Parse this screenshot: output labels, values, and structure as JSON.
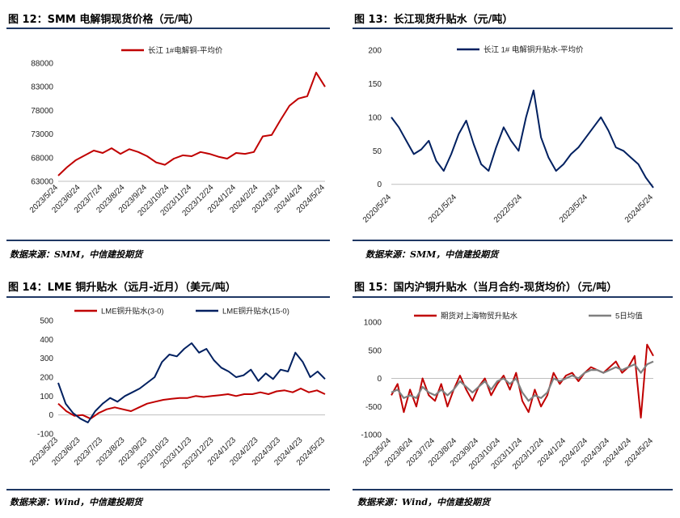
{
  "panels": [
    {
      "title": "图 12：SMM 电解铜现货价格（元/吨）",
      "source": "数据来源：SMM，中信建投期货"
    },
    {
      "title": "图 13：长江现货升贴水（元/吨）",
      "source": "数据来源：SMM，中信建投期货"
    },
    {
      "title": "图 14：LME 铜升贴水（远月-近月）（美元/吨）",
      "source": "数据来源：Wind，中信建投期货"
    },
    {
      "title": "图 15：国内沪铜升贴水（当月合约-现货均价）（元/吨）",
      "source": "数据来源：Wind，中信建投期货"
    }
  ],
  "colors": {
    "red": "#c00000",
    "navy": "#002060",
    "gray": "#7f7f7f",
    "rule": "#1f3864"
  },
  "chart_data": [
    {
      "type": "line",
      "title": "",
      "ylim": [
        63000,
        88000
      ],
      "yticks": [
        63000,
        68000,
        73000,
        78000,
        83000,
        88000
      ],
      "xticks": [
        "2023/5/24",
        "2023/6/24",
        "2023/7/24",
        "2023/8/24",
        "2023/9/24",
        "2023/10/24",
        "2023/11/24",
        "2023/12/24",
        "2024/1/24",
        "2024/2/24",
        "2024/3/24",
        "2024/4/24",
        "2024/5/24"
      ],
      "series": [
        {
          "name": "长江 1#电解铜-平均价",
          "color": "#c00000",
          "values": [
            64200,
            66000,
            67500,
            68500,
            69500,
            69000,
            70000,
            68800,
            69800,
            69200,
            68300,
            67000,
            66500,
            67800,
            68500,
            68300,
            69200,
            68800,
            68200,
            67800,
            69000,
            68800,
            69200,
            72500,
            72800,
            76000,
            79000,
            80500,
            81000,
            86000,
            83000
          ]
        }
      ]
    },
    {
      "type": "line",
      "title": "",
      "ylim": [
        -10,
        200
      ],
      "yticks": [
        0,
        50,
        100,
        150,
        200
      ],
      "xticks": [
        "2020/5/24",
        "2021/5/24",
        "2022/5/24",
        "2023/5/24",
        "2024/5/24"
      ],
      "series": [
        {
          "name": "长江 1# 电解铜升贴水-平均价",
          "color": "#002060",
          "values": [
            100,
            85,
            65,
            45,
            52,
            65,
            35,
            20,
            45,
            75,
            95,
            60,
            30,
            20,
            55,
            85,
            65,
            50,
            100,
            140,
            70,
            40,
            20,
            30,
            45,
            55,
            70,
            85,
            100,
            80,
            55,
            50,
            40,
            30,
            10,
            -5
          ]
        }
      ]
    },
    {
      "type": "line",
      "title": "",
      "ylim": [
        -100,
        500
      ],
      "yticks": [
        -100,
        0,
        100,
        200,
        300,
        400,
        500
      ],
      "xticks": [
        "2023/5/23",
        "2023/6/23",
        "2023/7/23",
        "2023/8/23",
        "2023/9/23",
        "2023/10/23",
        "2023/11/23",
        "2023/12/23",
        "2024/1/23",
        "2024/2/23",
        "2024/3/23",
        "2024/4/23",
        "2024/5/23"
      ],
      "series": [
        {
          "name": "LME铜升贴水(3-0)",
          "color": "#c00000",
          "values": [
            60,
            20,
            -5,
            0,
            -20,
            10,
            30,
            40,
            30,
            20,
            40,
            60,
            70,
            80,
            85,
            90,
            90,
            100,
            95,
            100,
            105,
            110,
            100,
            110,
            110,
            120,
            110,
            125,
            130,
            120,
            140,
            120,
            130,
            110
          ]
        },
        {
          "name": "LME铜升贴水(15-0)",
          "color": "#002060",
          "values": [
            170,
            60,
            10,
            -20,
            -40,
            20,
            60,
            90,
            70,
            100,
            120,
            140,
            170,
            200,
            280,
            320,
            310,
            350,
            380,
            330,
            350,
            290,
            250,
            230,
            200,
            210,
            240,
            180,
            220,
            190,
            240,
            230,
            330,
            280,
            200,
            230,
            190
          ]
        }
      ]
    },
    {
      "type": "line",
      "title": "",
      "ylim": [
        -1000,
        1000
      ],
      "yticks": [
        -1000,
        -500,
        0,
        500,
        1000
      ],
      "xticks": [
        "2023/5/24",
        "2023/6/24",
        "2023/7/24",
        "2023/8/24",
        "2023/9/24",
        "2023/10/24",
        "2023/11/24",
        "2023/12/24",
        "2024/1/24",
        "2024/2/24",
        "2024/3/24",
        "2024/4/24",
        "2024/5/24"
      ],
      "series": [
        {
          "name": "期货对上海物贸升贴水",
          "color": "#c00000",
          "values": [
            -300,
            -100,
            -600,
            -200,
            -500,
            0,
            -300,
            -400,
            -100,
            -500,
            -200,
            50,
            -200,
            -400,
            -150,
            0,
            -300,
            -100,
            50,
            -200,
            100,
            -400,
            -600,
            -200,
            -500,
            -300,
            100,
            -100,
            50,
            100,
            -50,
            100,
            200,
            150,
            100,
            200,
            300,
            100,
            200,
            400,
            -700,
            600,
            400
          ]
        },
        {
          "name": "5日均值",
          "color": "#7f7f7f",
          "values": [
            -250,
            -200,
            -350,
            -300,
            -350,
            -150,
            -250,
            -300,
            -200,
            -300,
            -200,
            -50,
            -150,
            -250,
            -150,
            -50,
            -200,
            -50,
            0,
            -100,
            0,
            -250,
            -400,
            -300,
            -350,
            -250,
            0,
            -50,
            0,
            50,
            0,
            100,
            150,
            150,
            100,
            150,
            200,
            150,
            200,
            250,
            100,
            250,
            300
          ]
        }
      ]
    }
  ]
}
